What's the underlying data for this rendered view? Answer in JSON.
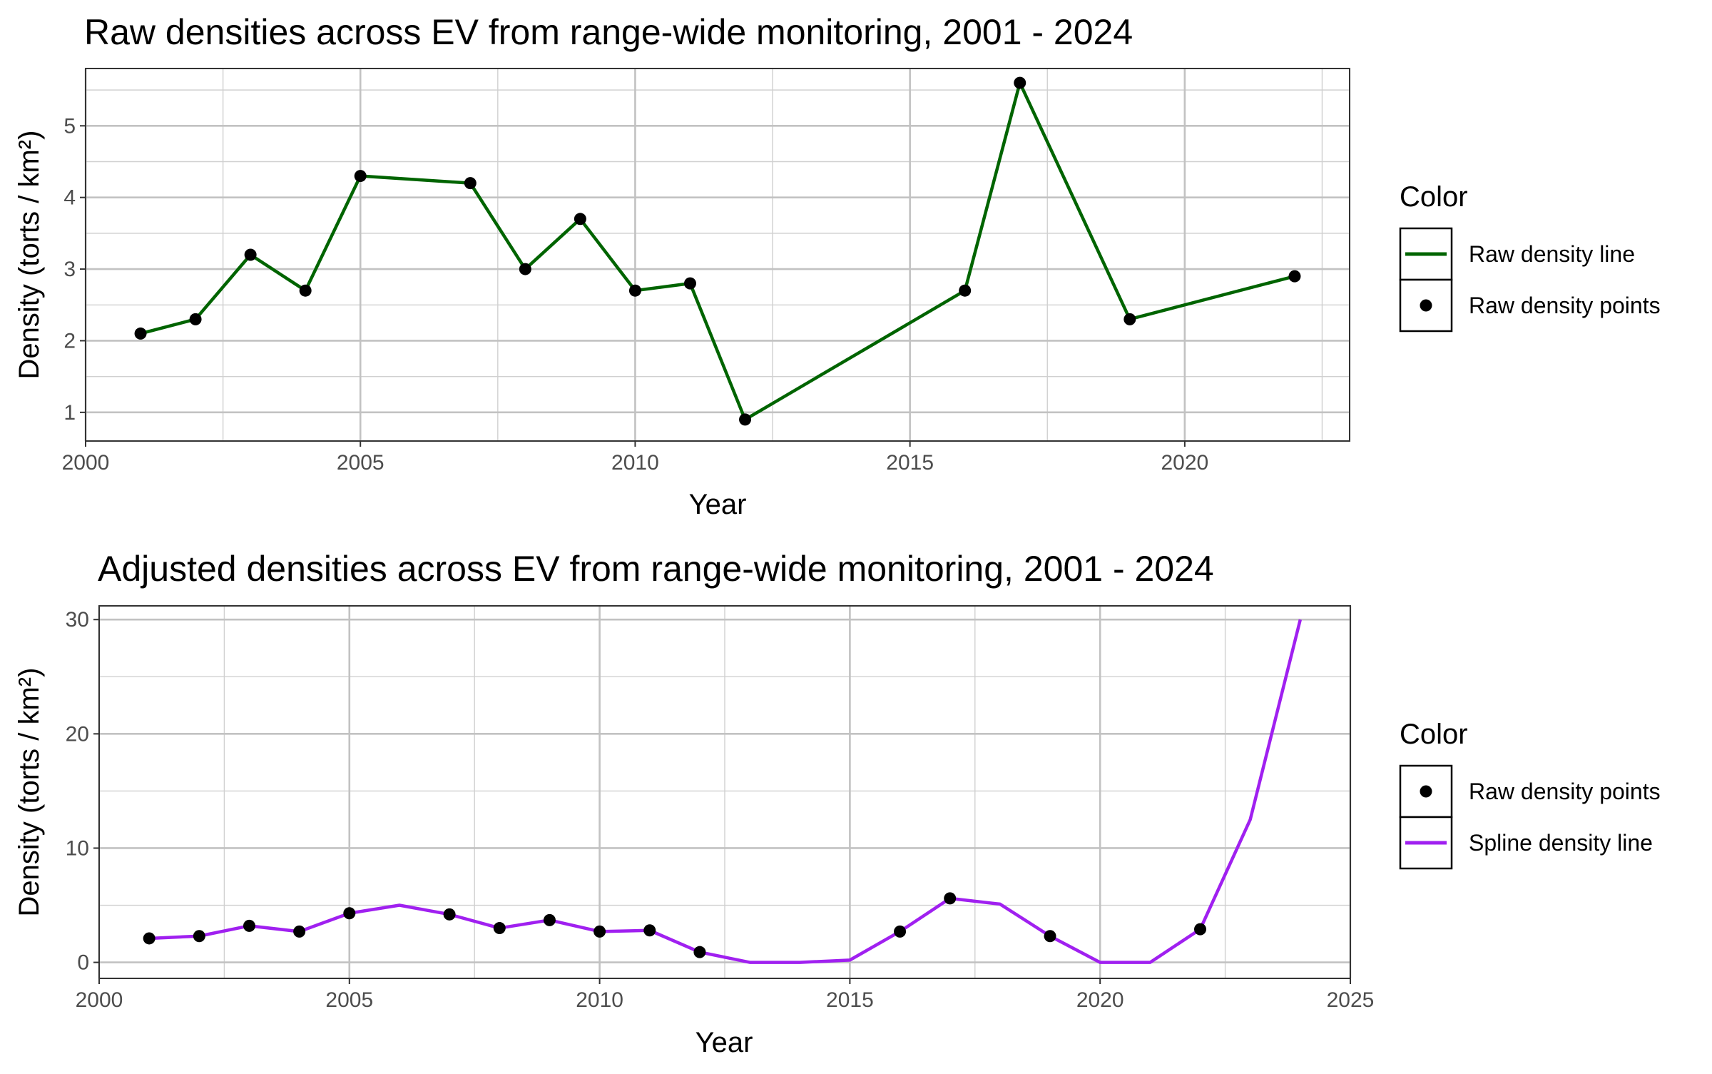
{
  "chart_data": [
    {
      "type": "line",
      "title": "Raw densities across EV from range-wide monitoring, 2001 - 2024",
      "xlabel": "Year",
      "ylabel": "Density (torts / km²)",
      "xlim": [
        2000,
        2023
      ],
      "ylim": [
        0.6,
        5.8
      ],
      "x_ticks": [
        2000,
        2005,
        2010,
        2015,
        2020
      ],
      "y_ticks": [
        1,
        2,
        3,
        4,
        5
      ],
      "grid": true,
      "legend_position": "right",
      "legend_title": "Color",
      "series": [
        {
          "name": "Raw density line",
          "kind": "line",
          "color": "#006400",
          "x": [
            2001,
            2002,
            2003,
            2004,
            2005,
            2007,
            2008,
            2009,
            2010,
            2011,
            2012,
            2016,
            2017,
            2019,
            2022
          ],
          "values": [
            2.1,
            2.3,
            3.2,
            2.7,
            4.3,
            4.2,
            3.0,
            3.7,
            2.7,
            2.8,
            0.9,
            2.7,
            5.6,
            2.3,
            2.9
          ]
        },
        {
          "name": "Raw density points",
          "kind": "points",
          "color": "#000000",
          "x": [
            2001,
            2002,
            2003,
            2004,
            2005,
            2007,
            2008,
            2009,
            2010,
            2011,
            2012,
            2016,
            2017,
            2019,
            2022
          ],
          "values": [
            2.1,
            2.3,
            3.2,
            2.7,
            4.3,
            4.2,
            3.0,
            3.7,
            2.7,
            2.8,
            0.9,
            2.7,
            5.6,
            2.3,
            2.9
          ]
        }
      ],
      "legend": [
        {
          "label": "Raw density line",
          "kind": "line",
          "color": "#006400"
        },
        {
          "label": "Raw density points",
          "kind": "point",
          "color": "#000000"
        }
      ]
    },
    {
      "type": "line",
      "title": "Adjusted densities across EV from range-wide monitoring, 2001 - 2024",
      "xlabel": "Year",
      "ylabel": "Density (torts / km²)",
      "xlim": [
        2000,
        2025
      ],
      "ylim": [
        -1.4,
        31.2
      ],
      "x_ticks": [
        2000,
        2005,
        2010,
        2015,
        2020,
        2025
      ],
      "y_ticks": [
        0,
        10,
        20,
        30
      ],
      "grid": true,
      "legend_position": "right",
      "legend_title": "Color",
      "series": [
        {
          "name": "Spline density line",
          "kind": "line",
          "color": "#a020f0",
          "x": [
            2001,
            2002,
            2003,
            2004,
            2005,
            2006,
            2007,
            2008,
            2009,
            2010,
            2011,
            2012,
            2013,
            2014,
            2015,
            2016,
            2017,
            2018,
            2019,
            2020,
            2021,
            2022,
            2023,
            2024
          ],
          "values": [
            2.1,
            2.3,
            3.2,
            2.7,
            4.3,
            5.0,
            4.2,
            3.0,
            3.7,
            2.7,
            2.8,
            0.9,
            0.0,
            0.0,
            0.2,
            2.7,
            5.6,
            5.1,
            2.3,
            0.0,
            0.0,
            2.9,
            12.5,
            30.0
          ]
        },
        {
          "name": "Raw density points",
          "kind": "points",
          "color": "#000000",
          "x": [
            2001,
            2002,
            2003,
            2004,
            2005,
            2007,
            2008,
            2009,
            2010,
            2011,
            2012,
            2016,
            2017,
            2019,
            2022
          ],
          "values": [
            2.1,
            2.3,
            3.2,
            2.7,
            4.3,
            4.2,
            3.0,
            3.7,
            2.7,
            2.8,
            0.9,
            2.7,
            5.6,
            2.3,
            2.9
          ]
        }
      ],
      "legend": [
        {
          "label": "Raw density points",
          "kind": "point",
          "color": "#000000"
        },
        {
          "label": "Spline density line",
          "kind": "line",
          "color": "#a020f0"
        }
      ]
    }
  ]
}
